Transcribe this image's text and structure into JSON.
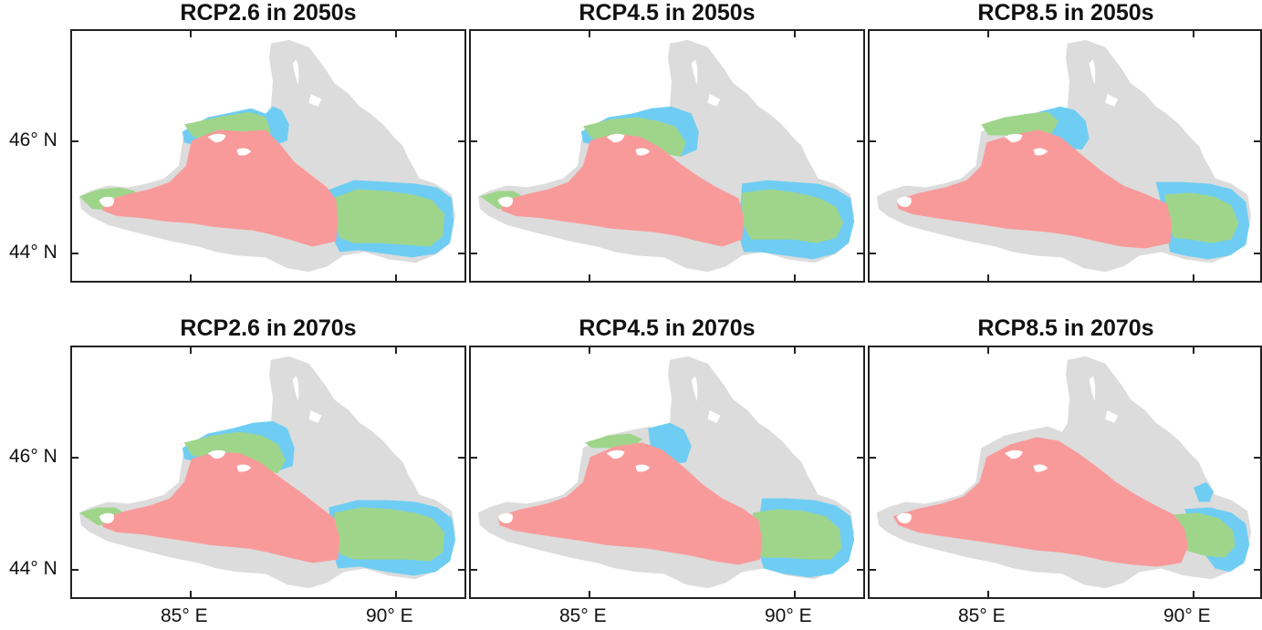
{
  "panels": [
    {
      "title": "RCP2.6 in 2050s",
      "scenario": "RCP2.6",
      "period": "2050s",
      "mix": "rcp26_2050"
    },
    {
      "title": "RCP4.5 in 2050s",
      "scenario": "RCP4.5",
      "period": "2050s",
      "mix": "rcp45_2050"
    },
    {
      "title": "RCP8.5 in 2050s",
      "scenario": "RCP8.5",
      "period": "2050s",
      "mix": "rcp85_2050"
    },
    {
      "title": "RCP2.6 in 2070s",
      "scenario": "RCP2.6",
      "period": "2070s",
      "mix": "rcp26_2070"
    },
    {
      "title": "RCP4.5 in 2070s",
      "scenario": "RCP4.5",
      "period": "2070s",
      "mix": "rcp45_2070"
    },
    {
      "title": "RCP8.5 in 2070s",
      "scenario": "RCP8.5",
      "period": "2070s",
      "mix": "rcp85_2070"
    }
  ],
  "axes": {
    "y_ticks": [
      "46° N",
      "44° N"
    ],
    "x_ticks": [
      "85° E",
      "90° E"
    ]
  },
  "colors": {
    "background_land": "#dcdcdc",
    "red_class": "#f99a9a",
    "green_class": "#9fd58b",
    "blue_class": "#6fcdf3",
    "frame": "#222222"
  }
}
